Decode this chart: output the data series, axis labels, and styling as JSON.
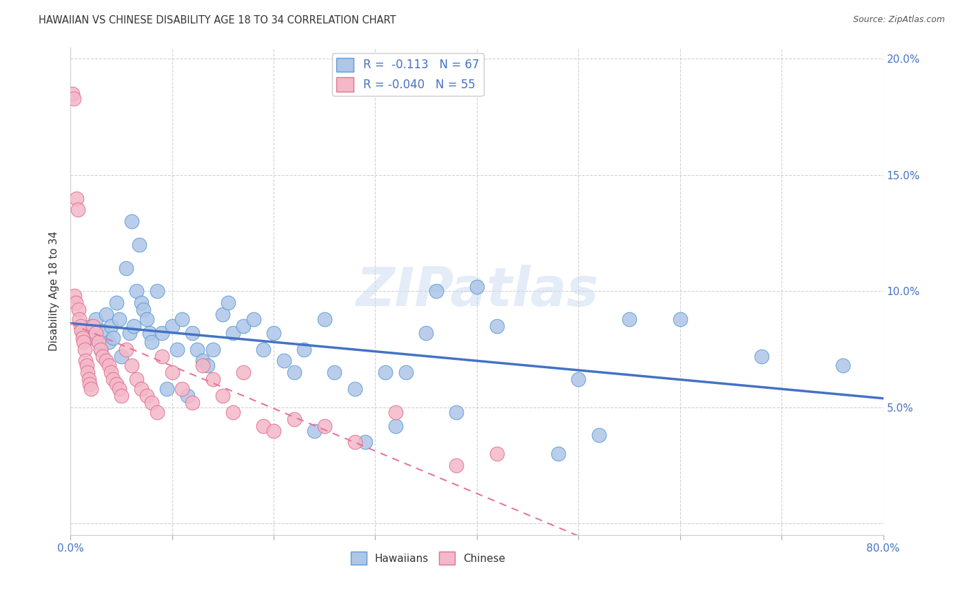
{
  "title": "HAWAIIAN VS CHINESE DISABILITY AGE 18 TO 34 CORRELATION CHART",
  "source": "Source: ZipAtlas.com",
  "ylabel": "Disability Age 18 to 34",
  "xlim": [
    0.0,
    0.8
  ],
  "ylim": [
    -0.005,
    0.205
  ],
  "xticks": [
    0.0,
    0.1,
    0.2,
    0.3,
    0.4,
    0.5,
    0.6,
    0.7,
    0.8
  ],
  "yticks": [
    0.0,
    0.05,
    0.1,
    0.15,
    0.2
  ],
  "yticklabels_right": [
    "",
    "5.0%",
    "10.0%",
    "15.0%",
    "20.0%"
  ],
  "hawaiian_R": -0.113,
  "hawaiian_N": 67,
  "chinese_R": -0.04,
  "chinese_N": 55,
  "hawaiian_color": "#aec6e8",
  "chinese_color": "#f4b8c8",
  "hawaiian_edge_color": "#5b9bd5",
  "chinese_edge_color": "#e07090",
  "hawaiian_trend_color": "#4472c4",
  "chinese_trend_color": "#e8749a",
  "watermark": "ZIPatlas",
  "background_color": "#ffffff",
  "grid_color": "#cccccc",
  "hawaiian_x": [
    0.012,
    0.018,
    0.02,
    0.025,
    0.028,
    0.03,
    0.032,
    0.035,
    0.038,
    0.04,
    0.042,
    0.045,
    0.048,
    0.05,
    0.055,
    0.058,
    0.06,
    0.062,
    0.065,
    0.068,
    0.07,
    0.072,
    0.075,
    0.078,
    0.08,
    0.085,
    0.09,
    0.095,
    0.1,
    0.105,
    0.11,
    0.115,
    0.12,
    0.125,
    0.13,
    0.135,
    0.14,
    0.15,
    0.155,
    0.16,
    0.17,
    0.18,
    0.19,
    0.2,
    0.21,
    0.22,
    0.23,
    0.24,
    0.25,
    0.26,
    0.28,
    0.29,
    0.31,
    0.32,
    0.33,
    0.35,
    0.36,
    0.38,
    0.4,
    0.42,
    0.48,
    0.5,
    0.52,
    0.55,
    0.6,
    0.68,
    0.76
  ],
  "hawaiian_y": [
    0.082,
    0.08,
    0.085,
    0.088,
    0.078,
    0.075,
    0.083,
    0.09,
    0.078,
    0.085,
    0.08,
    0.095,
    0.088,
    0.072,
    0.11,
    0.082,
    0.13,
    0.085,
    0.1,
    0.12,
    0.095,
    0.092,
    0.088,
    0.082,
    0.078,
    0.1,
    0.082,
    0.058,
    0.085,
    0.075,
    0.088,
    0.055,
    0.082,
    0.075,
    0.07,
    0.068,
    0.075,
    0.09,
    0.095,
    0.082,
    0.085,
    0.088,
    0.075,
    0.082,
    0.07,
    0.065,
    0.075,
    0.04,
    0.088,
    0.065,
    0.058,
    0.035,
    0.065,
    0.042,
    0.065,
    0.082,
    0.1,
    0.048,
    0.102,
    0.085,
    0.03,
    0.062,
    0.038,
    0.088,
    0.088,
    0.072,
    0.068
  ],
  "chinese_x": [
    0.002,
    0.003,
    0.004,
    0.005,
    0.006,
    0.007,
    0.008,
    0.009,
    0.01,
    0.011,
    0.012,
    0.013,
    0.014,
    0.015,
    0.016,
    0.017,
    0.018,
    0.019,
    0.02,
    0.022,
    0.025,
    0.028,
    0.03,
    0.032,
    0.035,
    0.038,
    0.04,
    0.042,
    0.045,
    0.048,
    0.05,
    0.055,
    0.06,
    0.065,
    0.07,
    0.075,
    0.08,
    0.085,
    0.09,
    0.1,
    0.11,
    0.12,
    0.13,
    0.14,
    0.15,
    0.16,
    0.17,
    0.19,
    0.2,
    0.22,
    0.25,
    0.28,
    0.32,
    0.38,
    0.42
  ],
  "chinese_y": [
    0.185,
    0.183,
    0.098,
    0.095,
    0.14,
    0.135,
    0.092,
    0.088,
    0.085,
    0.083,
    0.08,
    0.078,
    0.075,
    0.07,
    0.068,
    0.065,
    0.062,
    0.06,
    0.058,
    0.085,
    0.082,
    0.078,
    0.075,
    0.072,
    0.07,
    0.068,
    0.065,
    0.062,
    0.06,
    0.058,
    0.055,
    0.075,
    0.068,
    0.062,
    0.058,
    0.055,
    0.052,
    0.048,
    0.072,
    0.065,
    0.058,
    0.052,
    0.068,
    0.062,
    0.055,
    0.048,
    0.065,
    0.042,
    0.04,
    0.045,
    0.042,
    0.035,
    0.048,
    0.025,
    0.03
  ]
}
